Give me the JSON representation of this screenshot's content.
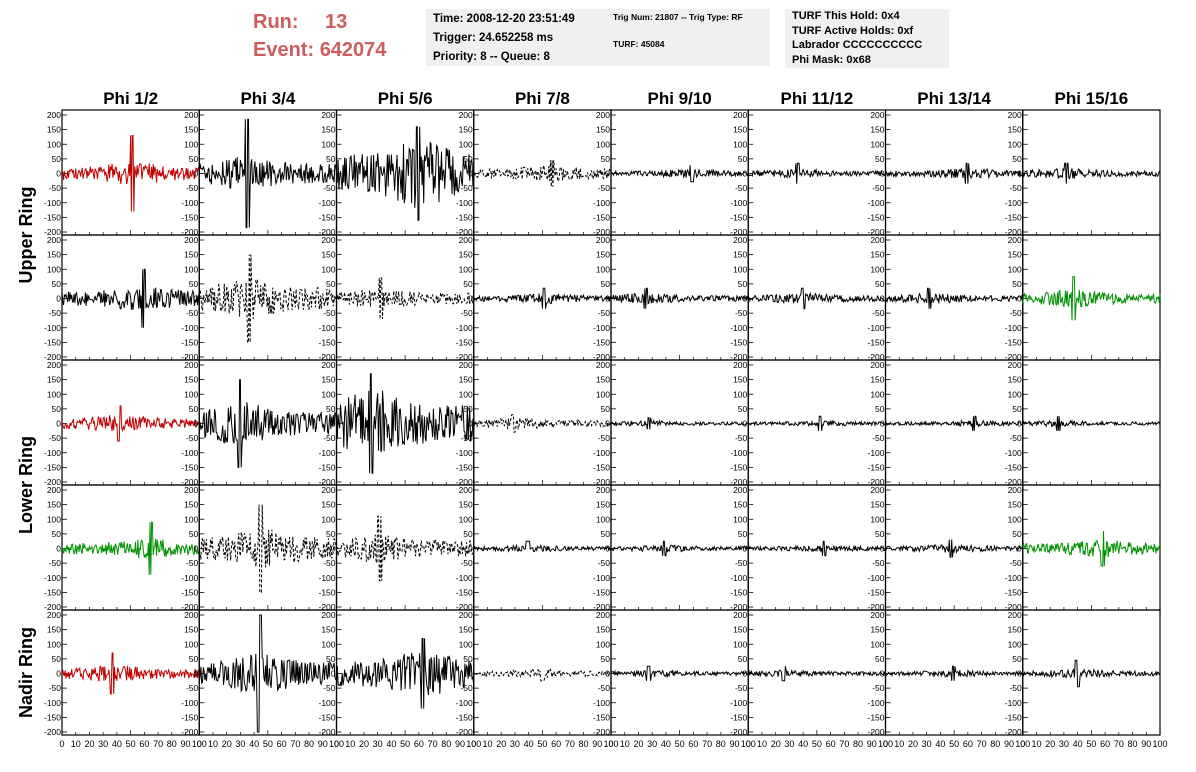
{
  "header": {
    "run_label": "Run:",
    "run_value": "13",
    "event_label": "Event:",
    "event_value": "642074",
    "time_line": "Time: 2008-12-20 23:51:49",
    "trigger_line": "Trigger: 24.652258 ms",
    "priority_line": "Priority: 8 -- Queue: 8",
    "trig_line": "Trig Num: 21807 -- Trig Type: RF",
    "turf_line": "TURF: 45084",
    "turf_hold_line": "TURF This Hold: 0x4",
    "turf_active_line": "TURF Active Holds: 0xf",
    "labrador_line": "Labrador CCCCCCCCCC",
    "phi_mask_line": "Phi Mask: 0x68"
  },
  "colors": {
    "header_red": "#cd5c5c",
    "info_bg": "#f0f0f0",
    "trace_black": "#000000",
    "trace_red": "#c00000",
    "trace_green": "#009000"
  },
  "chart_data": {
    "type": "line",
    "column_titles": [
      "Phi 1/2",
      "Phi 3/4",
      "Phi 5/6",
      "Phi 7/8",
      "Phi 9/10",
      "Phi 11/12",
      "Phi 13/14",
      "Phi 15/16"
    ],
    "ring_labels": [
      "Upper Ring",
      "Lower Ring",
      "Nadir Ring"
    ],
    "rows": 5,
    "columns": 8,
    "ylim": [
      -200,
      200
    ],
    "yticks": [
      -200,
      -150,
      -100,
      -50,
      0,
      50,
      100,
      150,
      200
    ],
    "ytick_labels": [
      "-200",
      "-150",
      "-100",
      "-50",
      "0",
      "50",
      "100",
      "150",
      "200"
    ],
    "xlim": [
      0,
      100
    ],
    "xticks": [
      0,
      10,
      20,
      30,
      40,
      50,
      60,
      70,
      80,
      90,
      100
    ],
    "xtick_labels": [
      "0",
      "10",
      "20",
      "30",
      "40",
      "50",
      "60",
      "70",
      "80",
      "90",
      "100"
    ],
    "traces": [
      [
        {
          "amp": 40,
          "peak": 130,
          "color": "red",
          "dashed": false
        },
        {
          "amp": 60,
          "peak": 185,
          "color": "black",
          "dashed": false
        },
        {
          "amp": 120,
          "peak": 160,
          "color": "black",
          "dashed": false
        },
        {
          "amp": 30,
          "peak": 45,
          "color": "black",
          "dashed": true
        },
        {
          "amp": 15,
          "peak": 28,
          "color": "black",
          "dashed": false
        },
        {
          "amp": 15,
          "peak": 35,
          "color": "black",
          "dashed": false
        },
        {
          "amp": 18,
          "peak": 35,
          "color": "black",
          "dashed": false
        },
        {
          "amp": 18,
          "peak": 35,
          "color": "black",
          "dashed": false
        }
      ],
      [
        {
          "amp": 45,
          "peak": 100,
          "color": "black",
          "dashed": false
        },
        {
          "amp": 70,
          "peak": 150,
          "color": "black",
          "dashed": true
        },
        {
          "amp": 35,
          "peak": 70,
          "color": "black",
          "dashed": true
        },
        {
          "amp": 18,
          "peak": 35,
          "color": "black",
          "dashed": false
        },
        {
          "amp": 18,
          "peak": 35,
          "color": "black",
          "dashed": false
        },
        {
          "amp": 18,
          "peak": 35,
          "color": "black",
          "dashed": false
        },
        {
          "amp": 18,
          "peak": 35,
          "color": "black",
          "dashed": false
        },
        {
          "amp": 30,
          "peak": 75,
          "color": "green",
          "dashed": false
        }
      ],
      [
        {
          "amp": 30,
          "peak": 60,
          "color": "red",
          "dashed": false
        },
        {
          "amp": 75,
          "peak": 150,
          "color": "black",
          "dashed": false
        },
        {
          "amp": 120,
          "peak": 170,
          "color": "black",
          "dashed": false
        },
        {
          "amp": 20,
          "peak": 30,
          "color": "black",
          "dashed": true
        },
        {
          "amp": 10,
          "peak": 20,
          "color": "black",
          "dashed": false
        },
        {
          "amp": 10,
          "peak": 25,
          "color": "black",
          "dashed": false
        },
        {
          "amp": 10,
          "peak": 25,
          "color": "black",
          "dashed": false
        },
        {
          "amp": 10,
          "peak": 25,
          "color": "black",
          "dashed": false
        }
      ],
      [
        {
          "amp": 35,
          "peak": 90,
          "color": "green",
          "dashed": false
        },
        {
          "amp": 70,
          "peak": 150,
          "color": "black",
          "dashed": true
        },
        {
          "amp": 50,
          "peak": 110,
          "color": "black",
          "dashed": true
        },
        {
          "amp": 12,
          "peak": 25,
          "color": "black",
          "dashed": false
        },
        {
          "amp": 12,
          "peak": 25,
          "color": "black",
          "dashed": false
        },
        {
          "amp": 12,
          "peak": 25,
          "color": "black",
          "dashed": false
        },
        {
          "amp": 14,
          "peak": 30,
          "color": "black",
          "dashed": false
        },
        {
          "amp": 30,
          "peak": 60,
          "color": "green",
          "dashed": false
        }
      ],
      [
        {
          "amp": 30,
          "peak": 70,
          "color": "red",
          "dashed": false
        },
        {
          "amp": 70,
          "peak": 200,
          "color": "black",
          "dashed": false
        },
        {
          "amp": 80,
          "peak": 120,
          "color": "black",
          "dashed": false
        },
        {
          "amp": 15,
          "peak": 25,
          "color": "black",
          "dashed": true
        },
        {
          "amp": 12,
          "peak": 25,
          "color": "black",
          "dashed": false
        },
        {
          "amp": 12,
          "peak": 25,
          "color": "black",
          "dashed": false
        },
        {
          "amp": 12,
          "peak": 25,
          "color": "black",
          "dashed": false
        },
        {
          "amp": 15,
          "peak": 45,
          "color": "black",
          "dashed": false
        }
      ]
    ]
  }
}
